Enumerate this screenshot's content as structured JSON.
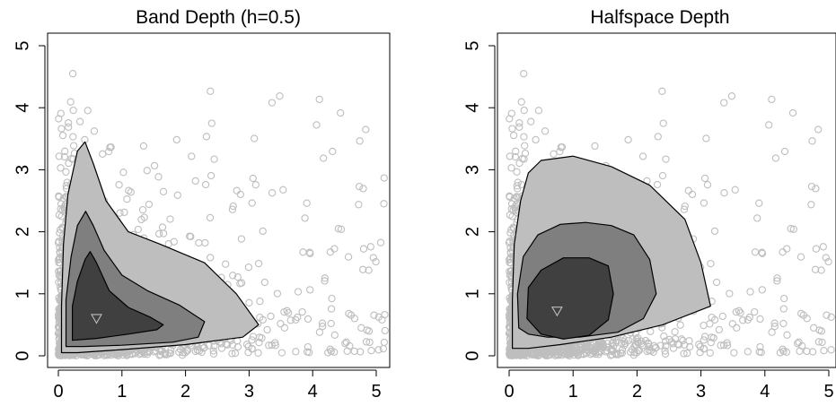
{
  "colors": {
    "points": "#bebebe",
    "region_outer": "#bebebe",
    "region_middle": "#7f7f7f",
    "region_inner": "#404040",
    "outline": "#000000",
    "median_marker": "#bebebe"
  },
  "chart_data": [
    {
      "type": "scatter",
      "title": "Band Depth (h=0.5)",
      "xlabel": "",
      "ylabel": "",
      "xlim": [
        0,
        5.2
      ],
      "ylim": [
        0,
        5.2
      ],
      "xticks": [
        "0",
        "1",
        "2",
        "3",
        "4",
        "5"
      ],
      "yticks": [
        "0",
        "1",
        "2",
        "3",
        "4",
        "5"
      ],
      "grid": false,
      "median": [
        0.6,
        0.6
      ],
      "regions": [
        {
          "level": "outer",
          "polygon": [
            [
              0.05,
              0.05
            ],
            [
              0.05,
              0.8
            ],
            [
              0.08,
              1.8
            ],
            [
              0.15,
              2.6
            ],
            [
              0.3,
              3.3
            ],
            [
              0.42,
              3.45
            ],
            [
              0.55,
              3.1
            ],
            [
              0.75,
              2.5
            ],
            [
              1.1,
              2.0
            ],
            [
              1.6,
              1.8
            ],
            [
              2.3,
              1.5
            ],
            [
              2.8,
              1.0
            ],
            [
              3.15,
              0.5
            ],
            [
              2.9,
              0.3
            ],
            [
              2.0,
              0.18
            ],
            [
              1.0,
              0.1
            ],
            [
              0.3,
              0.05
            ]
          ]
        },
        {
          "level": "middle",
          "polygon": [
            [
              0.12,
              0.15
            ],
            [
              0.12,
              0.9
            ],
            [
              0.2,
              1.6
            ],
            [
              0.3,
              2.1
            ],
            [
              0.43,
              2.33
            ],
            [
              0.55,
              2.1
            ],
            [
              0.72,
              1.7
            ],
            [
              1.0,
              1.3
            ],
            [
              1.4,
              1.05
            ],
            [
              1.9,
              0.82
            ],
            [
              2.3,
              0.55
            ],
            [
              2.2,
              0.3
            ],
            [
              1.8,
              0.22
            ],
            [
              1.0,
              0.17
            ],
            [
              0.4,
              0.15
            ]
          ]
        },
        {
          "level": "inner",
          "polygon": [
            [
              0.22,
              0.25
            ],
            [
              0.22,
              0.8
            ],
            [
              0.3,
              1.2
            ],
            [
              0.42,
              1.55
            ],
            [
              0.5,
              1.68
            ],
            [
              0.6,
              1.5
            ],
            [
              0.8,
              1.05
            ],
            [
              1.1,
              0.78
            ],
            [
              1.45,
              0.62
            ],
            [
              1.65,
              0.5
            ],
            [
              1.55,
              0.42
            ],
            [
              1.1,
              0.35
            ],
            [
              0.6,
              0.28
            ]
          ]
        }
      ]
    },
    {
      "type": "scatter",
      "title": "Halfspace Depth",
      "xlabel": "",
      "ylabel": "",
      "xlim": [
        0,
        5.2
      ],
      "ylim": [
        0,
        5.2
      ],
      "xticks": [
        "0",
        "1",
        "2",
        "3",
        "4",
        "5"
      ],
      "yticks": [
        "0",
        "1",
        "2",
        "3",
        "4",
        "5"
      ],
      "grid": false,
      "median": [
        0.75,
        0.72
      ],
      "regions": [
        {
          "level": "outer",
          "polygon": [
            [
              0.05,
              0.12
            ],
            [
              0.05,
              0.9
            ],
            [
              0.08,
              1.8
            ],
            [
              0.18,
              2.5
            ],
            [
              0.3,
              2.95
            ],
            [
              0.5,
              3.15
            ],
            [
              1.0,
              3.22
            ],
            [
              1.6,
              3.05
            ],
            [
              2.2,
              2.75
            ],
            [
              2.75,
              2.2
            ],
            [
              3.0,
              1.5
            ],
            [
              3.15,
              0.8
            ],
            [
              2.4,
              0.5
            ],
            [
              1.6,
              0.3
            ],
            [
              0.8,
              0.18
            ],
            [
              0.3,
              0.12
            ]
          ]
        },
        {
          "level": "middle",
          "polygon": [
            [
              0.15,
              0.45
            ],
            [
              0.13,
              1.0
            ],
            [
              0.22,
              1.6
            ],
            [
              0.45,
              1.95
            ],
            [
              0.8,
              2.12
            ],
            [
              1.2,
              2.15
            ],
            [
              1.6,
              2.1
            ],
            [
              1.95,
              1.95
            ],
            [
              2.2,
              1.55
            ],
            [
              2.3,
              1.0
            ],
            [
              2.1,
              0.6
            ],
            [
              1.7,
              0.38
            ],
            [
              1.1,
              0.3
            ],
            [
              0.6,
              0.3
            ],
            [
              0.3,
              0.35
            ]
          ]
        },
        {
          "level": "inner",
          "polygon": [
            [
              0.28,
              0.6
            ],
            [
              0.3,
              1.1
            ],
            [
              0.5,
              1.38
            ],
            [
              0.85,
              1.58
            ],
            [
              1.25,
              1.58
            ],
            [
              1.55,
              1.45
            ],
            [
              1.63,
              1.0
            ],
            [
              1.55,
              0.58
            ],
            [
              1.25,
              0.33
            ],
            [
              0.85,
              0.27
            ],
            [
              0.5,
              0.35
            ]
          ]
        }
      ]
    }
  ]
}
